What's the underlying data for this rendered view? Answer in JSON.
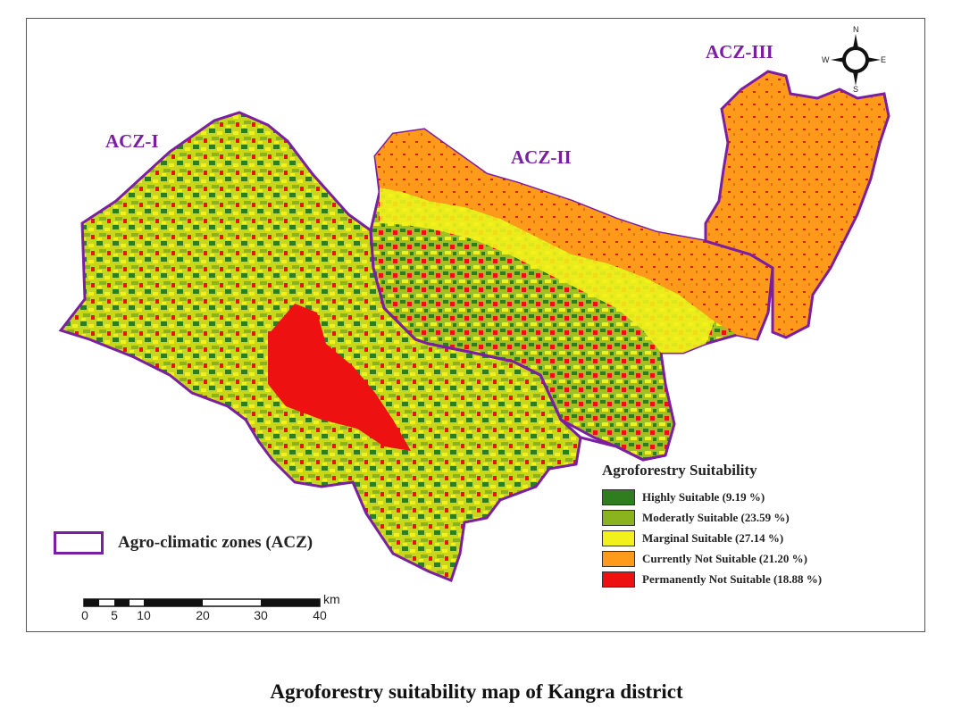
{
  "map": {
    "zones": [
      {
        "label": "ACZ-I"
      },
      {
        "label": "ACZ-II"
      },
      {
        "label": "ACZ-III"
      }
    ],
    "zone_key_label": "Agro-climatic zones (ACZ)",
    "colors": {
      "boundary": "#7b1fa2",
      "highly": "#2e7d1e",
      "moderately": "#8bb31e",
      "marginal": "#f3f11b",
      "currently_not": "#ff9a1a",
      "permanently_not": "#ee1111"
    }
  },
  "legend": {
    "title": "Agroforestry Suitability",
    "items": [
      {
        "label": "Highly Suitable (9.19 %)",
        "color": "#2e7d1e",
        "percent": 9.19
      },
      {
        "label": "Moderatly Suitable (23.59 %)",
        "color": "#8bb31e",
        "percent": 23.59
      },
      {
        "label": "Marginal Suitable (27.14 %)",
        "color": "#f3f11b",
        "percent": 27.14
      },
      {
        "label": "Currently Not Suitable (21.20 %)",
        "color": "#ff9a1a",
        "percent": 21.2
      },
      {
        "label": "Permanently Not Suitable (18.88 %)",
        "color": "#ee1111",
        "percent": 18.88
      }
    ]
  },
  "scale_bar": {
    "unit": "km",
    "ticks": [
      "0",
      "5",
      "10",
      "20",
      "30",
      "40"
    ]
  },
  "compass": {
    "n": "N",
    "s": "S",
    "e": "E",
    "w": "W"
  },
  "caption": "Agroforestry suitability map of Kangra district"
}
